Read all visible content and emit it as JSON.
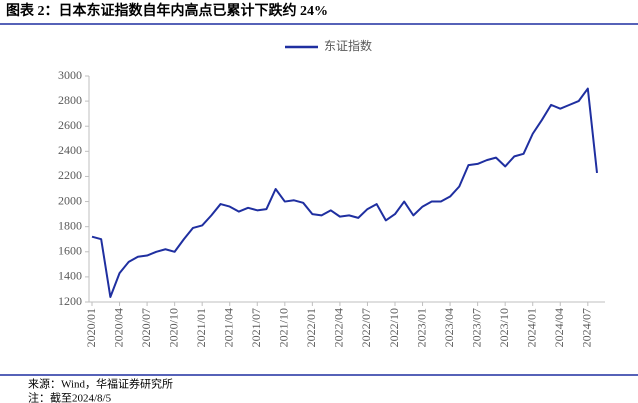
{
  "chart_data": {
    "type": "line",
    "title": "图表 2：日本东证指数自年内高点已累计下跌约 24%",
    "x": [
      "2020/01",
      "2020/02",
      "2020/03",
      "2020/04",
      "2020/05",
      "2020/06",
      "2020/07",
      "2020/08",
      "2020/09",
      "2020/10",
      "2020/11",
      "2020/12",
      "2021/01",
      "2021/02",
      "2021/03",
      "2021/04",
      "2021/05",
      "2021/06",
      "2021/07",
      "2021/08",
      "2021/09",
      "2021/10",
      "2021/11",
      "2021/12",
      "2022/01",
      "2022/02",
      "2022/03",
      "2022/04",
      "2022/05",
      "2022/06",
      "2022/07",
      "2022/08",
      "2022/09",
      "2022/10",
      "2022/11",
      "2022/12",
      "2023/01",
      "2023/02",
      "2023/03",
      "2023/04",
      "2023/05",
      "2023/06",
      "2023/07",
      "2023/08",
      "2023/09",
      "2023/10",
      "2023/11",
      "2023/12",
      "2024/01",
      "2024/02",
      "2024/03",
      "2024/04",
      "2024/05",
      "2024/06",
      "2024/07",
      "2024/08"
    ],
    "series": [
      {
        "name": "东证指数",
        "color": "#1f2fa0",
        "values": [
          1720,
          1700,
          1240,
          1430,
          1520,
          1560,
          1570,
          1600,
          1620,
          1600,
          1700,
          1790,
          1810,
          1890,
          1980,
          1960,
          1920,
          1950,
          1930,
          1940,
          2100,
          2000,
          2010,
          1990,
          1900,
          1890,
          1930,
          1880,
          1890,
          1870,
          1940,
          1980,
          1850,
          1900,
          2000,
          1890,
          1960,
          2000,
          2000,
          2040,
          2120,
          2290,
          2300,
          2330,
          2350,
          2280,
          2360,
          2380,
          2540,
          2650,
          2770,
          2740,
          2770,
          2800,
          2900,
          2228
        ]
      }
    ],
    "ylim": [
      1200,
      3000
    ],
    "yticks": [
      1200,
      1400,
      1600,
      1800,
      2000,
      2200,
      2400,
      2600,
      2800,
      3000
    ],
    "xticks": [
      "2020/01",
      "2020/04",
      "2020/07",
      "2020/10",
      "2021/01",
      "2021/04",
      "2021/07",
      "2021/10",
      "2022/01",
      "2022/04",
      "2022/07",
      "2022/10",
      "2023/01",
      "2023/04",
      "2023/07",
      "2023/10",
      "2024/01",
      "2024/04",
      "2024/07"
    ],
    "source": "来源：Wind，华福证券研究所",
    "note": "注：截至2024/8/5"
  }
}
